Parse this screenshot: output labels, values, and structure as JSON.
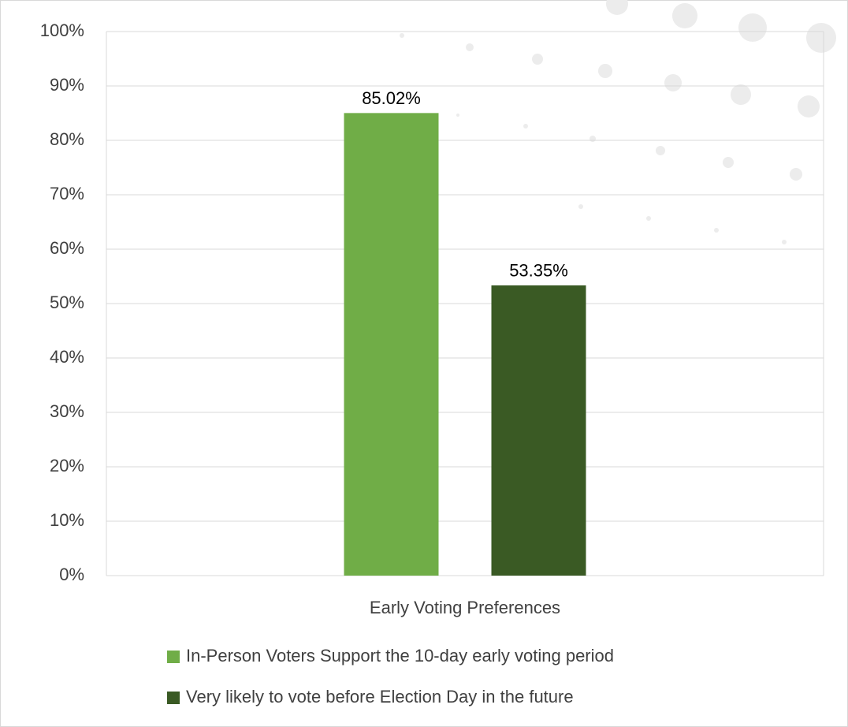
{
  "chart_data": {
    "type": "bar",
    "categories": [
      "Early Voting Preferences"
    ],
    "series": [
      {
        "name": "In-Person Voters Support the 10-day early voting period",
        "color": "#70ad47",
        "values": [
          85.02
        ],
        "value_labels": [
          "85.02%"
        ]
      },
      {
        "name": "Very likely to vote before Election Day in the future",
        "color": "#3a5a24",
        "values": [
          53.35
        ],
        "value_labels": [
          "53.35%"
        ]
      }
    ],
    "ylim": [
      0,
      100
    ],
    "yticks": [
      {
        "value": 0,
        "label": "0%"
      },
      {
        "value": 10,
        "label": "10%"
      },
      {
        "value": 20,
        "label": "20%"
      },
      {
        "value": 30,
        "label": "30%"
      },
      {
        "value": 40,
        "label": "40%"
      },
      {
        "value": 50,
        "label": "50%"
      },
      {
        "value": 60,
        "label": "60%"
      },
      {
        "value": 70,
        "label": "70%"
      },
      {
        "value": 80,
        "label": "80%"
      },
      {
        "value": 90,
        "label": "90%"
      },
      {
        "value": 100,
        "label": "100%"
      }
    ],
    "grid": true
  }
}
